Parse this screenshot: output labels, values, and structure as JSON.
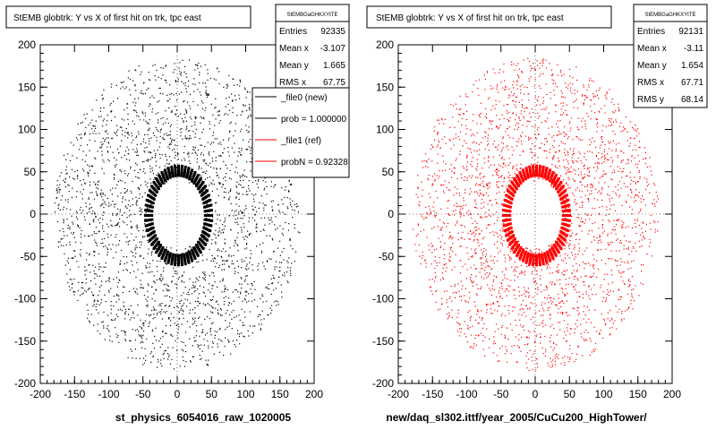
{
  "window": {
    "background": "#ffffff"
  },
  "chart_data": [
    {
      "type": "scatter",
      "title": "StEMB globtrk: Y vs X of first hit on trk, tpc east",
      "xlabel": "st_physics_6054016_raw_1020005",
      "ylabel": "",
      "xlim": [
        -200,
        200
      ],
      "ylim": [
        -200,
        200
      ],
      "xticks": [
        -200,
        -150,
        -100,
        -50,
        0,
        50,
        100,
        150,
        200
      ],
      "yticks": [
        -200,
        -150,
        -100,
        -50,
        0,
        50,
        100,
        150,
        200
      ],
      "point_color": "#000000",
      "stats": {
        "title": "StEMBGaGHKXYtTE",
        "rows": [
          {
            "label": "Entries",
            "value": "92335"
          },
          {
            "label": "Mean x",
            "value": "-3.107"
          },
          {
            "label": "Mean y",
            "value": "1.665"
          },
          {
            "label": "RMS x",
            "value": "67.75"
          }
        ]
      },
      "legend": {
        "placement": "top-right",
        "entries": [
          {
            "label": "_file0 (new)",
            "color": "#000000"
          },
          {
            "label": "prob = 1.000000",
            "color": "#000000"
          },
          {
            "label": "_file1 (ref)",
            "color": "#ff0000"
          },
          {
            "label": "probN = 0.92328",
            "color": "#ff0000"
          }
        ]
      },
      "distribution": {
        "hole_center": [
          0,
          0
        ],
        "hole_radius": 40,
        "inner_ring_width": 12,
        "outer_radius_x": 180,
        "outer_radius_y": 185
      }
    },
    {
      "type": "scatter",
      "title": "StEMB globtrk: Y vs X of first hit on trk, tpc east",
      "xlabel": "new/daq_sl302.ittf/year_2005/CuCu200_HighTower/",
      "ylabel": "",
      "xlim": [
        -200,
        200
      ],
      "ylim": [
        -200,
        200
      ],
      "xticks": [
        -200,
        -150,
        -100,
        -50,
        0,
        50,
        100,
        150,
        200
      ],
      "yticks": [
        -200,
        -150,
        -100,
        -50,
        0,
        50,
        100,
        150,
        200
      ],
      "point_color": "#ff0000",
      "stats": {
        "title": "StEMBGaGHKXYtTE",
        "rows": [
          {
            "label": "Entries",
            "value": "92131"
          },
          {
            "label": "Mean x",
            "value": "-3.11"
          },
          {
            "label": "Mean y",
            "value": "1.654"
          },
          {
            "label": "RMS x",
            "value": "67.71"
          },
          {
            "label": "RMS y",
            "value": "68.14"
          }
        ]
      },
      "distribution": {
        "hole_center": [
          0,
          0
        ],
        "hole_radius": 40,
        "inner_ring_width": 12,
        "outer_radius_x": 180,
        "outer_radius_y": 185
      }
    }
  ]
}
